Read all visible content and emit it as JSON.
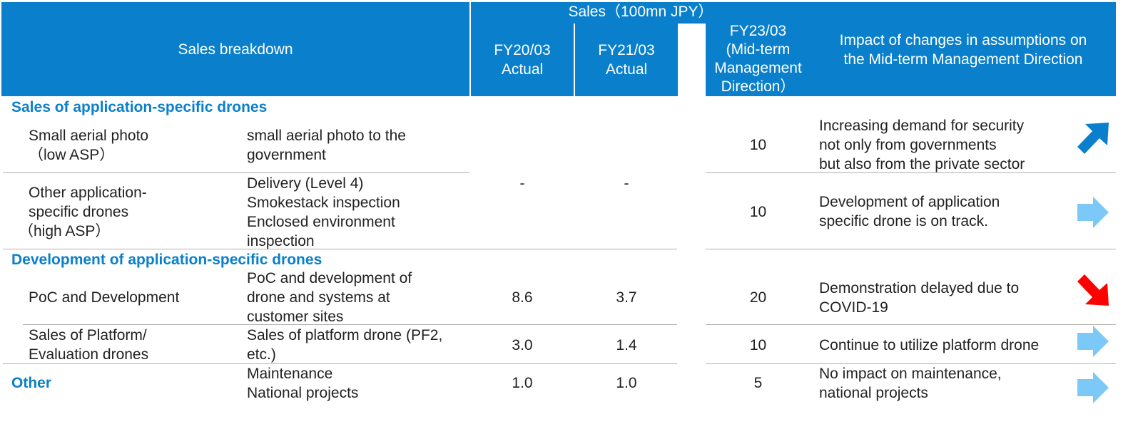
{
  "header": {
    "sales_group": "Sales（100mn JPY）",
    "breakdown": "Sales breakdown",
    "fy20": [
      "FY20/03",
      "Actual"
    ],
    "fy21": [
      "FY21/03",
      "Actual"
    ],
    "fy23": [
      "FY23/03",
      "(Mid-term",
      "Management",
      "Direction）"
    ],
    "impact": [
      "Impact of changes in assumptions on",
      "the Mid-term Management Direction"
    ]
  },
  "sections": {
    "s1": "Sales of application-specific drones",
    "s2": "Development of application-specific drones",
    "s3": "Other"
  },
  "rows": {
    "r1": {
      "item": [
        "Small aerial photo",
        "（low ASP）"
      ],
      "detail": [
        "small aerial photo to the",
        "government"
      ],
      "fy23": "10",
      "impact": [
        "Increasing demand for security",
        "not only from governments",
        "but also from the private sector"
      ],
      "trend": "up-right"
    },
    "shared_fy20": "-",
    "shared_fy21": "-",
    "r2": {
      "item": [
        "Other application-",
        "specific drones",
        "（high ASP）"
      ],
      "detail": [
        "Delivery (Level 4)",
        "Smokestack inspection",
        "Enclosed environment",
        "inspection"
      ],
      "fy23": "10",
      "impact": [
        "Development of application",
        "specific drone is on track."
      ],
      "trend": "right"
    },
    "r3": {
      "item": [
        "PoC and Development"
      ],
      "detail": [
        "PoC and development of",
        "drone and systems at",
        "customer sites"
      ],
      "fy20": "8.6",
      "fy21": "3.7",
      "fy23": "20",
      "impact": [
        "Demonstration delayed due to",
        "COVID-19"
      ],
      "trend": "down-right"
    },
    "r4": {
      "item": [
        "Sales of Platform/",
        "Evaluation drones"
      ],
      "detail": [
        "Sales of platform drone (PF2,",
        "etc.)"
      ],
      "fy20": "3.0",
      "fy21": "1.4",
      "fy23": "10",
      "impact": [
        "Continue to utilize platform drone"
      ],
      "trend": "right"
    },
    "r5": {
      "detail": [
        "Maintenance",
        "National projects"
      ],
      "fy20": "1.0",
      "fy21": "1.0",
      "fy23": "5",
      "impact": [
        "No impact on maintenance,",
        "national projects"
      ],
      "trend": "right"
    }
  },
  "colors": {
    "header_bg": "#0a7fcb",
    "section_text": "#0a7fcb",
    "arrow_up": "#0a7fcb",
    "arrow_flat": "#7cc8f6",
    "arrow_down": "#ff0000"
  },
  "icons": {
    "up": "arrow-up-right-icon",
    "flat": "arrow-right-icon",
    "down": "arrow-down-right-icon"
  }
}
